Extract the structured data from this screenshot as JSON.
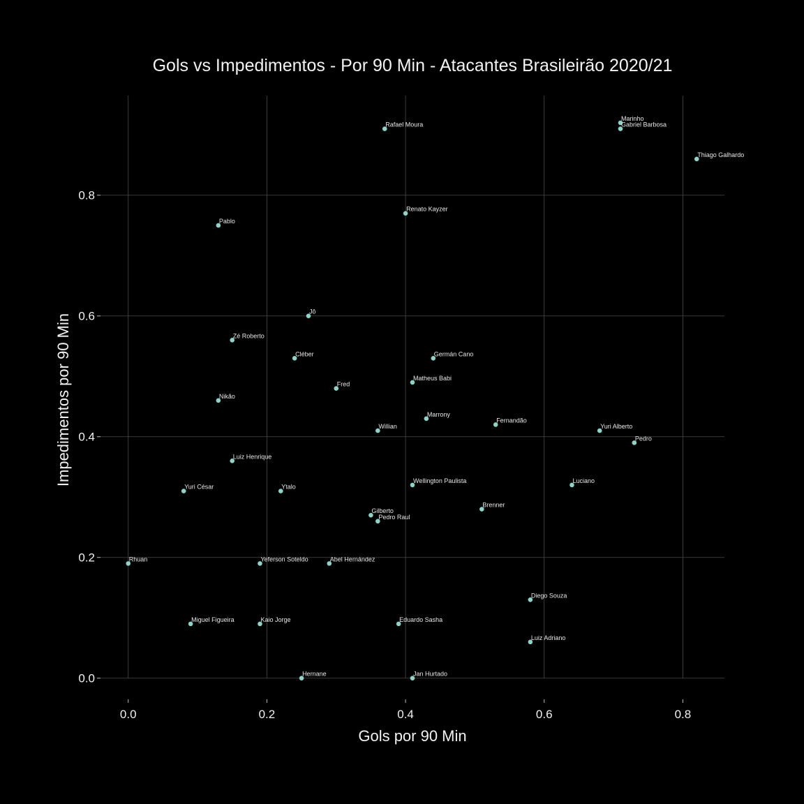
{
  "chart_data": {
    "type": "scatter",
    "title": "Gols vs Impedimentos - Por 90 Min - Atacantes Brasileirão 2020/21",
    "xlabel": "Gols por 90 Min",
    "ylabel": "Impedimentos por 90 Min",
    "xlim": [
      -0.04,
      0.86
    ],
    "ylim": [
      -0.035,
      0.965
    ],
    "xticks": [
      0.0,
      0.2,
      0.4,
      0.6,
      0.8
    ],
    "yticks": [
      0.0,
      0.2,
      0.4,
      0.6,
      0.8
    ],
    "xtick_labels": [
      "0.0",
      "0.2",
      "0.4",
      "0.6",
      "0.8"
    ],
    "ytick_labels": [
      "0.0",
      "0.2",
      "0.4",
      "0.6",
      "0.8"
    ],
    "grid": true,
    "point_color": "#8dd3c7",
    "background": "#000000",
    "points": [
      {
        "label": "Marinho",
        "x": 0.71,
        "y": 0.92
      },
      {
        "label": "Gabriel Barbosa",
        "x": 0.71,
        "y": 0.91
      },
      {
        "label": "Rafael Moura",
        "x": 0.37,
        "y": 0.91
      },
      {
        "label": "Thiago Galhardo",
        "x": 0.82,
        "y": 0.86
      },
      {
        "label": "Renato Kayzer",
        "x": 0.4,
        "y": 0.77
      },
      {
        "label": "Pablo",
        "x": 0.13,
        "y": 0.75
      },
      {
        "label": "Jô",
        "x": 0.26,
        "y": 0.6
      },
      {
        "label": "Zé Roberto",
        "x": 0.15,
        "y": 0.56
      },
      {
        "label": "Cléber",
        "x": 0.24,
        "y": 0.53
      },
      {
        "label": "Germán Cano",
        "x": 0.44,
        "y": 0.53
      },
      {
        "label": "Matheus Babi",
        "x": 0.41,
        "y": 0.49
      },
      {
        "label": "Fred",
        "x": 0.3,
        "y": 0.48
      },
      {
        "label": "Nikão",
        "x": 0.13,
        "y": 0.46
      },
      {
        "label": "Marrony",
        "x": 0.43,
        "y": 0.43
      },
      {
        "label": "Fernandão",
        "x": 0.53,
        "y": 0.42
      },
      {
        "label": "Willian",
        "x": 0.36,
        "y": 0.41
      },
      {
        "label": "Yuri Alberto",
        "x": 0.68,
        "y": 0.41
      },
      {
        "label": "Pedro",
        "x": 0.73,
        "y": 0.39
      },
      {
        "label": "Luiz Henrique",
        "x": 0.15,
        "y": 0.36
      },
      {
        "label": "Wellington Paulista",
        "x": 0.41,
        "y": 0.32
      },
      {
        "label": "Luciano",
        "x": 0.64,
        "y": 0.32
      },
      {
        "label": "Yuri César",
        "x": 0.08,
        "y": 0.31
      },
      {
        "label": "Ytalo",
        "x": 0.22,
        "y": 0.31
      },
      {
        "label": "Brenner",
        "x": 0.51,
        "y": 0.28
      },
      {
        "label": "Gilberto",
        "x": 0.35,
        "y": 0.27
      },
      {
        "label": "Pedro Raul",
        "x": 0.36,
        "y": 0.26
      },
      {
        "label": "Rhuan",
        "x": 0.0,
        "y": 0.19
      },
      {
        "label": "Yeferson Soteldo",
        "x": 0.19,
        "y": 0.19
      },
      {
        "label": "Abel Hernández",
        "x": 0.29,
        "y": 0.19
      },
      {
        "label": "Diego Souza",
        "x": 0.58,
        "y": 0.13
      },
      {
        "label": "Miguel Figueira",
        "x": 0.09,
        "y": 0.09
      },
      {
        "label": "Kaio Jorge",
        "x": 0.19,
        "y": 0.09
      },
      {
        "label": "Eduardo Sasha",
        "x": 0.39,
        "y": 0.09
      },
      {
        "label": "Luiz Adriano",
        "x": 0.58,
        "y": 0.06
      },
      {
        "label": "Hernane",
        "x": 0.25,
        "y": 0.0
      },
      {
        "label": "Jan Hurtado",
        "x": 0.41,
        "y": 0.0
      }
    ]
  }
}
